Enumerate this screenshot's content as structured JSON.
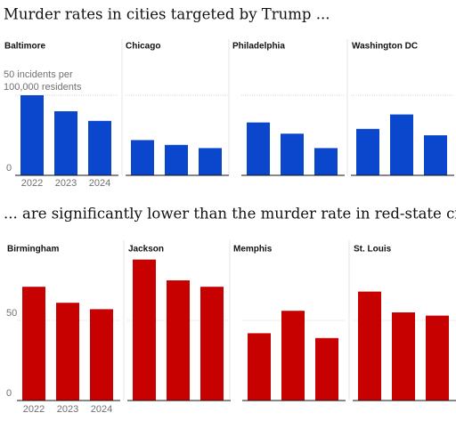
{
  "headings": [
    "Murder rates in cities targeted by Trump ...",
    "... are significantly lower than the murder rate in red-state cities"
  ],
  "chart_data": [
    {
      "type": "bar",
      "title": "Baltimore",
      "categories": [
        "2022",
        "2023",
        "2024"
      ],
      "values": [
        50,
        40,
        34
      ],
      "color": "#0a47cc",
      "ylim": [
        0,
        60
      ],
      "yticks": [
        0,
        {
          "value": 50,
          "label": "50 incidents per 100,000 residents"
        }
      ]
    },
    {
      "type": "bar",
      "title": "Chicago",
      "categories": [
        null,
        null,
        null
      ],
      "values": [
        22,
        19,
        17
      ],
      "color": "#0a47cc",
      "ylim": [
        0,
        60
      ]
    },
    {
      "type": "bar",
      "title": "Philadelphia",
      "categories": [
        null,
        null,
        null
      ],
      "values": [
        33,
        26,
        17
      ],
      "color": "#0a47cc",
      "ylim": [
        0,
        60
      ]
    },
    {
      "type": "bar",
      "title": "Washington DC",
      "categories": [
        null,
        null,
        null
      ],
      "values": [
        29,
        38,
        25
      ],
      "color": "#0a47cc",
      "ylim": [
        0,
        60
      ]
    },
    {
      "type": "bar",
      "title": "Birmingham",
      "categories": [
        "2022",
        "2023",
        "2024"
      ],
      "values": [
        71,
        61,
        57
      ],
      "color": "#c70000",
      "ylim": [
        0,
        95
      ],
      "yticks": [
        0,
        50
      ]
    },
    {
      "type": "bar",
      "title": "Jackson",
      "categories": [
        null,
        null,
        null
      ],
      "values": [
        88,
        75,
        71
      ],
      "color": "#c70000",
      "ylim": [
        0,
        95
      ]
    },
    {
      "type": "bar",
      "title": "Memphis",
      "categories": [
        null,
        null,
        null
      ],
      "values": [
        42,
        56,
        39
      ],
      "color": "#c70000",
      "ylim": [
        0,
        95
      ]
    },
    {
      "type": "bar",
      "title": "St. Louis",
      "categories": [
        null,
        null,
        null
      ],
      "values": [
        68,
        55,
        53
      ],
      "color": "#c70000",
      "ylim": [
        0,
        95
      ]
    }
  ]
}
